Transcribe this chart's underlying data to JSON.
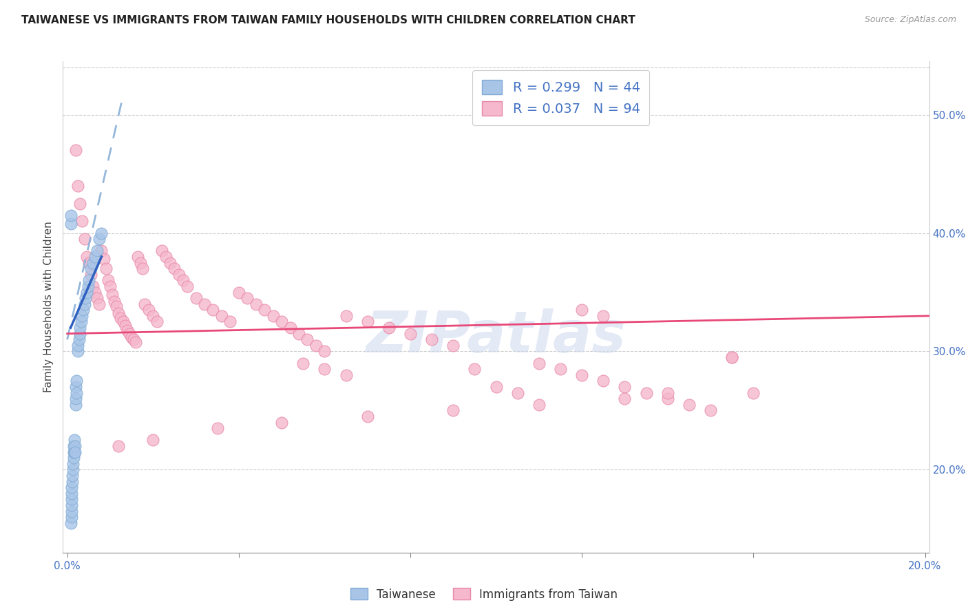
{
  "title": "TAIWANESE VS IMMIGRANTS FROM TAIWAN FAMILY HOUSEHOLDS WITH CHILDREN CORRELATION CHART",
  "source": "Source: ZipAtlas.com",
  "ylabel": "Family Households with Children",
  "x_min": -0.001,
  "x_max": 0.201,
  "y_min": 0.13,
  "y_max": 0.545,
  "blue_R": 0.299,
  "blue_N": 44,
  "pink_R": 0.037,
  "pink_N": 94,
  "blue_color": "#a8c5e8",
  "blue_edge": "#80aad4",
  "pink_color": "#f5b8cc",
  "pink_edge": "#e888a8",
  "trend_blue_color": "#90b0d8",
  "trend_pink_color": "#e84878",
  "watermark_color": "#ccd8ee",
  "grid_color": "#cccccc",
  "title_color": "#222222",
  "tick_color": "#4472c4",
  "blue_scatter_x": [
    0.0008,
    0.001,
    0.001,
    0.001,
    0.001,
    0.001,
    0.001,
    0.0012,
    0.0012,
    0.0014,
    0.0014,
    0.0015,
    0.0015,
    0.0015,
    0.0016,
    0.0016,
    0.0018,
    0.0018,
    0.002,
    0.002,
    0.002,
    0.0022,
    0.0022,
    0.0025,
    0.0025,
    0.0028,
    0.003,
    0.003,
    0.0032,
    0.0035,
    0.0038,
    0.004,
    0.0042,
    0.0045,
    0.0048,
    0.005,
    0.0055,
    0.006,
    0.0065,
    0.007,
    0.0075,
    0.008,
    0.0008,
    0.0009
  ],
  "blue_scatter_y": [
    0.155,
    0.16,
    0.165,
    0.17,
    0.175,
    0.18,
    0.185,
    0.19,
    0.195,
    0.2,
    0.205,
    0.21,
    0.215,
    0.22,
    0.215,
    0.225,
    0.22,
    0.215,
    0.255,
    0.26,
    0.27,
    0.265,
    0.275,
    0.3,
    0.305,
    0.31,
    0.315,
    0.32,
    0.325,
    0.33,
    0.335,
    0.34,
    0.345,
    0.35,
    0.355,
    0.36,
    0.37,
    0.375,
    0.38,
    0.385,
    0.395,
    0.4,
    0.408,
    0.415
  ],
  "pink_scatter_x": [
    0.002,
    0.0025,
    0.003,
    0.0035,
    0.004,
    0.0045,
    0.005,
    0.0055,
    0.006,
    0.0065,
    0.007,
    0.0075,
    0.008,
    0.0085,
    0.009,
    0.0095,
    0.01,
    0.0105,
    0.011,
    0.0115,
    0.012,
    0.0125,
    0.013,
    0.0135,
    0.014,
    0.0145,
    0.015,
    0.0155,
    0.016,
    0.0165,
    0.017,
    0.0175,
    0.018,
    0.019,
    0.02,
    0.021,
    0.022,
    0.023,
    0.024,
    0.025,
    0.026,
    0.027,
    0.028,
    0.03,
    0.032,
    0.034,
    0.036,
    0.038,
    0.04,
    0.042,
    0.044,
    0.046,
    0.048,
    0.05,
    0.052,
    0.054,
    0.056,
    0.058,
    0.06,
    0.065,
    0.07,
    0.075,
    0.08,
    0.085,
    0.09,
    0.095,
    0.1,
    0.105,
    0.11,
    0.115,
    0.12,
    0.125,
    0.13,
    0.135,
    0.14,
    0.145,
    0.15,
    0.155,
    0.16,
    0.12,
    0.125,
    0.055,
    0.06,
    0.065,
    0.155,
    0.14,
    0.13,
    0.11,
    0.09,
    0.07,
    0.05,
    0.035,
    0.02,
    0.012
  ],
  "pink_scatter_y": [
    0.47,
    0.44,
    0.425,
    0.41,
    0.395,
    0.38,
    0.375,
    0.365,
    0.355,
    0.35,
    0.345,
    0.34,
    0.385,
    0.378,
    0.37,
    0.36,
    0.355,
    0.348,
    0.342,
    0.338,
    0.332,
    0.328,
    0.325,
    0.322,
    0.318,
    0.315,
    0.312,
    0.31,
    0.308,
    0.38,
    0.375,
    0.37,
    0.34,
    0.335,
    0.33,
    0.325,
    0.385,
    0.38,
    0.375,
    0.37,
    0.365,
    0.36,
    0.355,
    0.345,
    0.34,
    0.335,
    0.33,
    0.325,
    0.35,
    0.345,
    0.34,
    0.335,
    0.33,
    0.325,
    0.32,
    0.315,
    0.31,
    0.305,
    0.3,
    0.33,
    0.325,
    0.32,
    0.315,
    0.31,
    0.305,
    0.285,
    0.27,
    0.265,
    0.29,
    0.285,
    0.28,
    0.275,
    0.27,
    0.265,
    0.26,
    0.255,
    0.25,
    0.295,
    0.265,
    0.335,
    0.33,
    0.29,
    0.285,
    0.28,
    0.295,
    0.265,
    0.26,
    0.255,
    0.25,
    0.245,
    0.24,
    0.235,
    0.225,
    0.22
  ]
}
